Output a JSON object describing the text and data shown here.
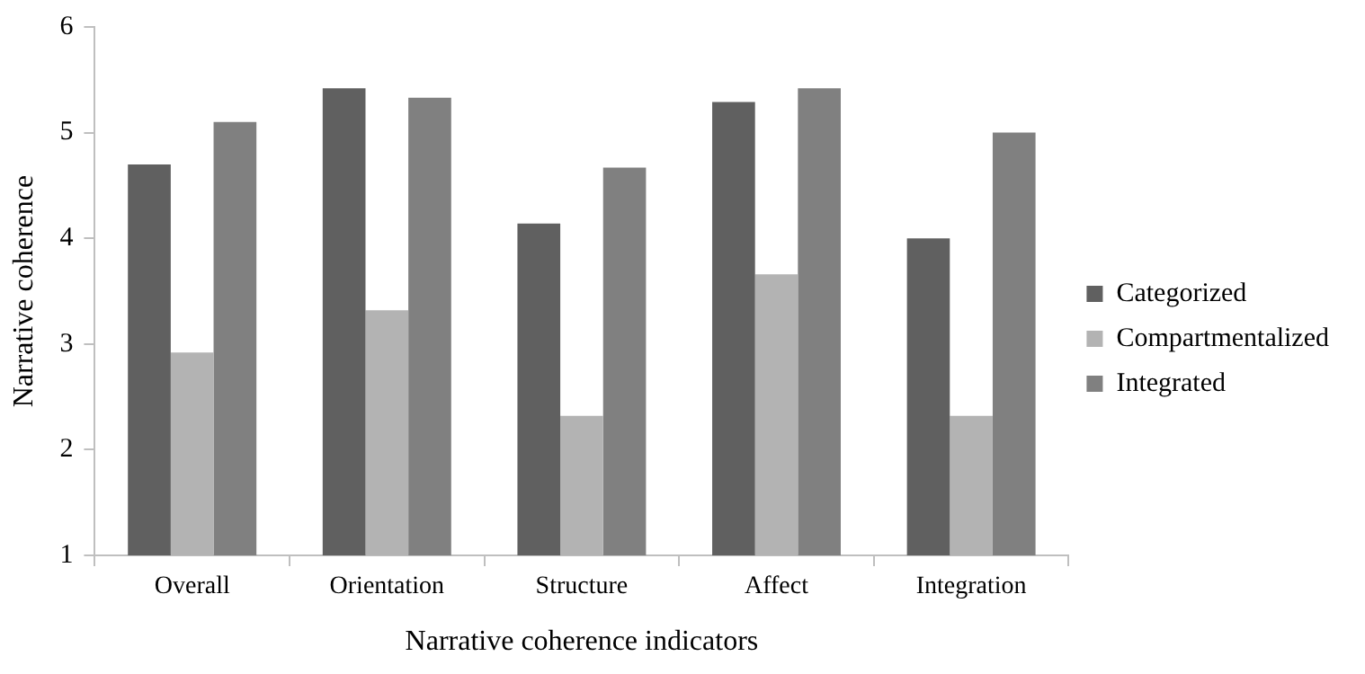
{
  "chart_data": {
    "type": "bar",
    "xlabel": "Narrative coherence indicators",
    "ylabel": "Narrative coherence",
    "categories": [
      "Overall",
      "Orientation",
      "Structure",
      "Affect",
      "Integration"
    ],
    "series": [
      {
        "name": "Categorized",
        "color": "#606060",
        "values": [
          4.7,
          5.42,
          4.14,
          5.29,
          4.0
        ]
      },
      {
        "name": "Compartmentalized",
        "color": "#b3b3b3",
        "values": [
          2.92,
          3.32,
          2.32,
          3.66,
          2.32
        ]
      },
      {
        "name": "Integrated",
        "color": "#808080",
        "values": [
          5.1,
          5.33,
          4.67,
          5.42,
          5.0
        ]
      }
    ],
    "ylim": [
      1,
      6
    ],
    "yticks": [
      1,
      2,
      3,
      4,
      5,
      6
    ],
    "grid": false,
    "legend": "right"
  }
}
